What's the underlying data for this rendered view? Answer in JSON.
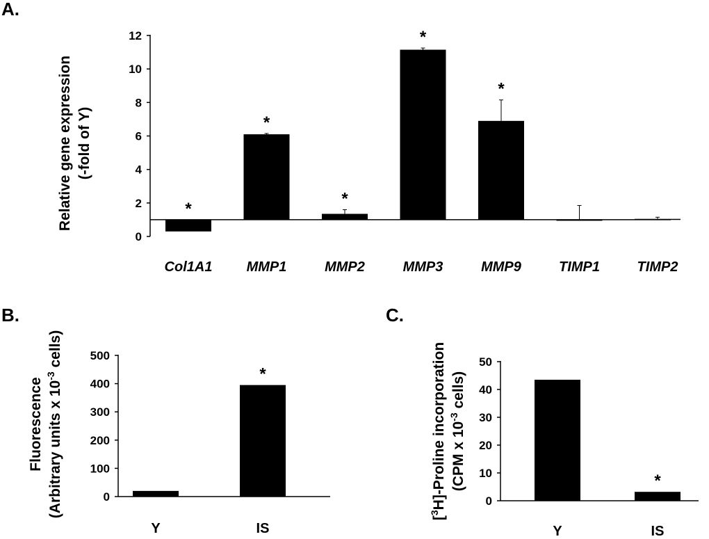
{
  "chart_data": [
    {
      "panel": "A.",
      "type": "bar",
      "ylabel": [
        "Relative gene expression",
        "(-fold of Y)"
      ],
      "categories": [
        "Col1A1",
        "MMP1",
        "MMP2",
        "MMP3",
        "MMP9",
        "TIMP1",
        "TIMP2"
      ],
      "values": [
        0.3,
        6.1,
        1.35,
        11.15,
        6.9,
        0.95,
        1.05
      ],
      "error_upper": [
        0.0,
        0.05,
        0.25,
        0.1,
        1.25,
        0.9,
        0.1
      ],
      "significance": [
        "*",
        "*",
        "*",
        "*",
        "*",
        "",
        ""
      ],
      "baseline": 1,
      "ylim": [
        0,
        12
      ],
      "yticks": [
        "0",
        "2",
        "4",
        "6",
        "8",
        "10",
        "12"
      ]
    },
    {
      "panel": "B.",
      "type": "bar",
      "ylabel": [
        "Fluorescence",
        "(Arbitrary units x 10",
        "-3",
        " cells)"
      ],
      "categories": [
        "Y",
        "IS"
      ],
      "values": [
        20,
        395
      ],
      "significance": [
        "",
        "*"
      ],
      "ylim": [
        0,
        500
      ],
      "yticks": [
        "0",
        "100",
        "200",
        "300",
        "400",
        "500"
      ]
    },
    {
      "panel": "C.",
      "type": "bar",
      "ylabel": [
        "[",
        "3",
        "H]-Proline incorporation",
        "(CPM x 10",
        "-3",
        " cells)"
      ],
      "categories": [
        "Y",
        "IS"
      ],
      "values": [
        43.5,
        3.2
      ],
      "significance": [
        "",
        "*"
      ],
      "ylim": [
        0,
        50
      ],
      "yticks": [
        "0",
        "10",
        "20",
        "30",
        "40",
        "50"
      ]
    }
  ]
}
